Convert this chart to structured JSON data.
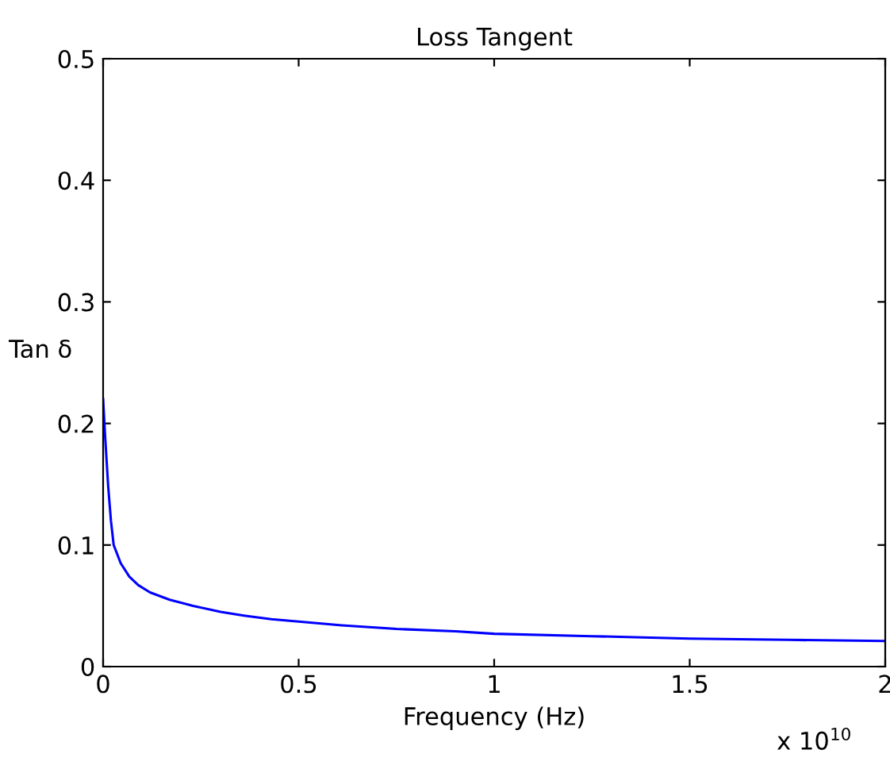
{
  "chart_data": {
    "type": "line",
    "title": "Loss Tangent",
    "xlabel": "Frequency (Hz)",
    "ylabel": "Tan δ",
    "annotations": [
      "x 10$^{10}$"
    ],
    "series": [
      {
        "color": "#0000ff",
        "x": [
          0,
          0.005,
          0.013,
          0.02,
          0.027,
          0.045,
          0.067,
          0.09,
          0.12,
          0.17,
          0.23,
          0.3,
          0.36,
          0.43,
          0.5,
          0.61,
          0.75,
          0.9,
          1.0,
          1.25,
          1.5,
          1.75,
          2.0
        ],
        "values": [
          0.22,
          0.19,
          0.148,
          0.12,
          0.1,
          0.085,
          0.074,
          0.067,
          0.061,
          0.055,
          0.05,
          0.045,
          0.042,
          0.039,
          0.037,
          0.034,
          0.031,
          0.029,
          0.027,
          0.025,
          0.023,
          0.022,
          0.021
        ]
      }
    ],
    "xlim": [
      0,
      2
    ],
    "ylim": [
      0,
      0.5
    ],
    "xticks": [
      0,
      0.5,
      1,
      1.5,
      2
    ],
    "yticks": [
      0,
      0.1,
      0.2,
      0.3,
      0.4,
      0.5
    ],
    "grid": false,
    "legend": false,
    "marker": "none",
    "line_style": "solid"
  }
}
